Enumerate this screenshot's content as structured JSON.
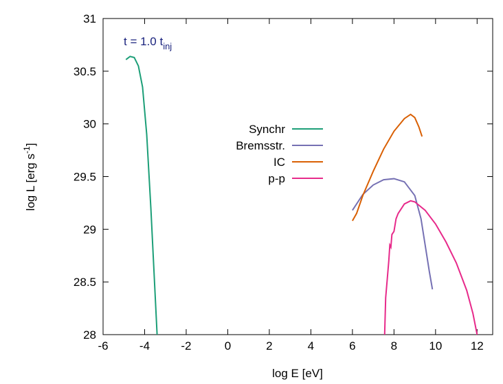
{
  "chart_data": {
    "type": "line",
    "xlabel": "log E [eV]",
    "ylabel": {
      "text": "log L [erg s",
      "superscript": "-1",
      "suffix": "]"
    },
    "annotation": {
      "text": "t = 1.0 t",
      "subscript": "inj",
      "color": "#1a237e"
    },
    "xlim": [
      -6,
      12.75
    ],
    "ylim": [
      28,
      31
    ],
    "xticks": [
      -6,
      -4,
      -2,
      0,
      2,
      4,
      6,
      8,
      10,
      12
    ],
    "yticks": [
      28,
      28.5,
      29,
      29.5,
      30,
      30.5,
      31
    ],
    "grid": false,
    "legend": "center",
    "series": [
      {
        "name": "Synchr",
        "color": "#1b9e77",
        "x": [
          -4.9,
          -4.7,
          -4.5,
          -4.3,
          -4.1,
          -3.9,
          -3.7,
          -3.55,
          -3.4
        ],
        "values": [
          30.61,
          30.64,
          30.63,
          30.55,
          30.35,
          29.9,
          29.2,
          28.6,
          28.0
        ]
      },
      {
        "name": "Bremsstr.",
        "color": "#7570b3",
        "x": [
          6.0,
          6.5,
          7.0,
          7.5,
          8.0,
          8.5,
          9.0,
          9.3,
          9.5,
          9.7,
          9.85
        ],
        "values": [
          29.18,
          29.33,
          29.42,
          29.47,
          29.48,
          29.45,
          29.32,
          29.1,
          28.85,
          28.6,
          28.43
        ]
      },
      {
        "name": "IC",
        "color": "#d95f02",
        "x": [
          6.0,
          6.2,
          6.5,
          7.0,
          7.5,
          8.0,
          8.5,
          8.8,
          9.0,
          9.2,
          9.35
        ],
        "values": [
          29.08,
          29.15,
          29.32,
          29.55,
          29.76,
          29.93,
          30.05,
          30.09,
          30.06,
          29.97,
          29.88
        ]
      },
      {
        "name": "p-p",
        "color": "#e7298a",
        "x": [
          7.55,
          7.6,
          7.75,
          7.8,
          7.85,
          7.9,
          8.0,
          8.1,
          8.2,
          8.5,
          8.8,
          9.0,
          9.5,
          10.0,
          10.5,
          11.0,
          11.5,
          11.8,
          12.0
        ],
        "values": [
          28.0,
          28.35,
          28.7,
          28.85,
          28.83,
          28.95,
          28.98,
          29.1,
          29.15,
          29.24,
          29.27,
          29.26,
          29.18,
          29.05,
          28.88,
          28.68,
          28.42,
          28.2,
          28.0
        ]
      }
    ]
  }
}
